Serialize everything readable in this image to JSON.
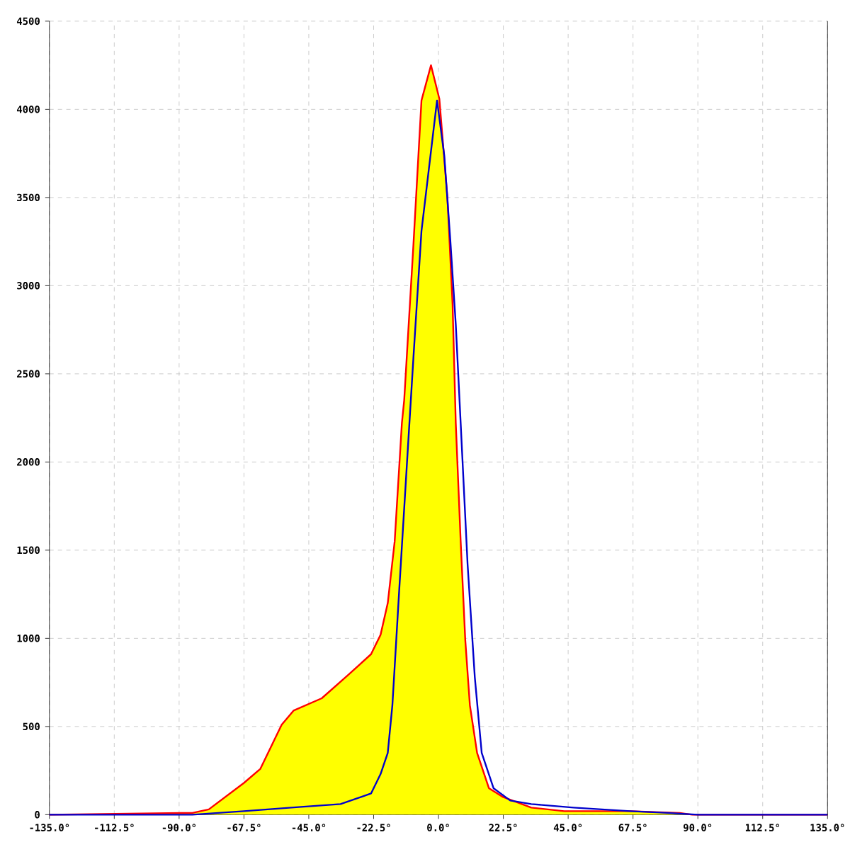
{
  "chart_data": {
    "type": "area",
    "xlim": [
      -135,
      135
    ],
    "ylim": [
      0,
      4500
    ],
    "xticks": [
      {
        "value": -135,
        "label": "-135.0°"
      },
      {
        "value": -112.5,
        "label": "-112.5°"
      },
      {
        "value": -90,
        "label": "-90.0°"
      },
      {
        "value": -67.5,
        "label": "-67.5°"
      },
      {
        "value": -45,
        "label": "-45.0°"
      },
      {
        "value": -22.5,
        "label": "-22.5°"
      },
      {
        "value": 0,
        "label": "0.0°"
      },
      {
        "value": 22.5,
        "label": "22.5°"
      },
      {
        "value": 45,
        "label": "45.0°"
      },
      {
        "value": 67.5,
        "label": "67.5°"
      },
      {
        "value": 90,
        "label": "90.0°"
      },
      {
        "value": 112.5,
        "label": "112.5°"
      },
      {
        "value": 135,
        "label": "135.0°"
      }
    ],
    "yticks": [
      0,
      500,
      1000,
      1500,
      2000,
      2500,
      3000,
      3500,
      4000,
      4500
    ],
    "grid": true,
    "series": [
      {
        "color": "#ffff00",
        "x": [
          -135,
          -85.4,
          -79.7,
          -67.5,
          -61.8,
          -54.4,
          -50.3,
          -40.5,
          -31.5,
          -23.4,
          -20.1,
          -17.6,
          -15.2,
          -12.7,
          -11.9,
          -8.7,
          -5.9,
          -2.6,
          0.3,
          3.1,
          4.9,
          6.0,
          7.7,
          9.3,
          10.9,
          13.4,
          17.5,
          22.4,
          32.2,
          43.6,
          66.5,
          83.7,
          88,
          135
        ],
        "values": [
          0,
          10,
          30,
          180,
          260,
          510,
          590,
          660,
          790,
          910,
          1020,
          1200,
          1550,
          2220,
          2350,
          3230,
          4050,
          4250,
          4060,
          3500,
          2890,
          2220,
          1550,
          990,
          620,
          350,
          150,
          100,
          40,
          20,
          20,
          10,
          0,
          0
        ]
      },
      {
        "type": "line",
        "color": "#0000cc",
        "x": [
          -135,
          -85.4,
          -67.5,
          -51.1,
          -34.0,
          -23.4,
          -20.1,
          -17.6,
          -16.0,
          -13.6,
          -11.1,
          -8.7,
          -5.9,
          -0.5,
          2.0,
          4.1,
          6.0,
          7.7,
          10.1,
          12.6,
          15.0,
          19.1,
          24.9,
          32.2,
          46.9,
          66.5,
          79.6,
          90,
          135
        ],
        "values": [
          0,
          0,
          20,
          40,
          60,
          120,
          230,
          350,
          620,
          1280,
          1950,
          2590,
          3310,
          4050,
          3740,
          3260,
          2780,
          2220,
          1420,
          780,
          350,
          150,
          80,
          60,
          40,
          20,
          10,
          0,
          0
        ]
      }
    ]
  }
}
